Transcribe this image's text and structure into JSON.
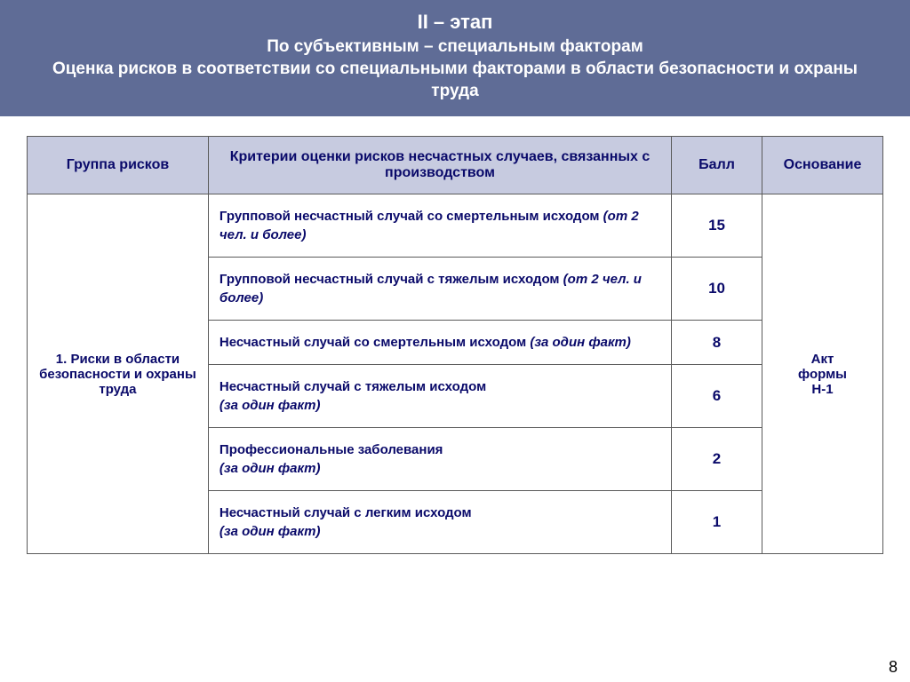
{
  "header": {
    "title": "II – этап",
    "subtitle1": "По субъективным – специальным факторам",
    "subtitle2": "Оценка рисков в соответствии со специальными факторами в области безопасности и охраны труда"
  },
  "table": {
    "columns": {
      "group": "Группа рисков",
      "criteria": "Критерии оценки рисков несчастных случаев, связанных с производством",
      "score": "Балл",
      "basis": "Основание"
    },
    "group_label": "1. Риски в области безопасности и охраны труда",
    "basis_label": "Акт формы Н-1",
    "rows": [
      {
        "bold": "Групповой несчастный случай со смертельным исходом",
        "italic": " (от 2 чел. и более)",
        "score": "15"
      },
      {
        "bold": "Групповой несчастный случай с тяжелым исходом",
        "italic": " (от 2 чел. и более)",
        "score": "10"
      },
      {
        "bold": "Несчастный случай со смертельным исходом",
        "italic": " (за один факт)",
        "score": "8"
      },
      {
        "bold": "Несчастный случай с тяжелым исходом",
        "italic": " (за один факт)",
        "score": "6"
      },
      {
        "bold": "Профессиональные заболевания",
        "italic": " (за один факт)",
        "score": "2"
      },
      {
        "bold": "Несчастный случай с легким исходом",
        "italic": " (за один факт)",
        "score": "1"
      }
    ]
  },
  "page_number": "8",
  "colors": {
    "header_bg": "#5f6c96",
    "th_bg": "#c7cbe0",
    "text": "#0a0a6a",
    "border": "#5a5a5a"
  }
}
